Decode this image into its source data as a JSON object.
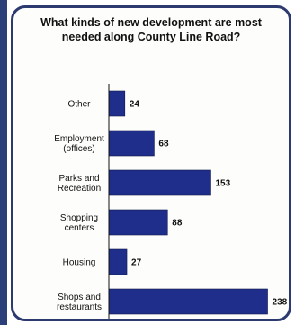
{
  "chart_data": {
    "type": "bar",
    "orientation": "horizontal",
    "title": "What kinds of new development are most\nneeded along County Line Road?",
    "categories": [
      "Other",
      "Employment\n(offices)",
      "Parks and\nRecreation",
      "Shopping\ncenters",
      "Housing",
      "Shops and\nrestaurants"
    ],
    "values": [
      24,
      68,
      153,
      88,
      27,
      238
    ],
    "xlim": [
      0,
      240
    ],
    "grid": false,
    "legend": "none",
    "colors": {
      "bar": "#1f2e8a",
      "bar_outline": "#12194d",
      "border": "#2c3a70",
      "axis": "#111111"
    }
  }
}
